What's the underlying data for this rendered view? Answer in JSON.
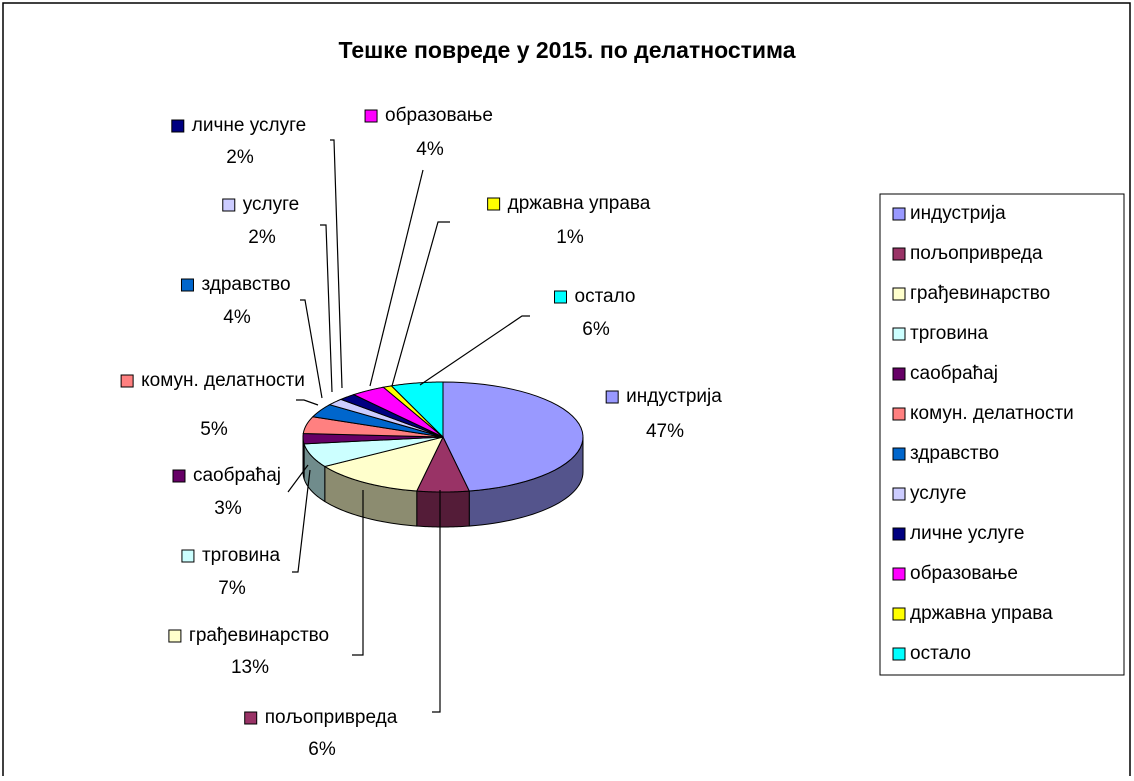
{
  "chart_data": {
    "type": "pie3d",
    "title": "Тешке повреде у 2015. по делатностима",
    "categories": [
      "индустрија",
      "пољопривреда",
      "грађевинарство",
      "трговина",
      "саобраћај",
      "комун. делатности",
      "здравство",
      "услуге",
      "личне услуге",
      "образовање",
      "државна управа",
      "остало"
    ],
    "values": [
      47,
      6,
      13,
      7,
      3,
      5,
      4,
      2,
      2,
      4,
      1,
      6
    ],
    "value_labels": [
      "47%",
      "6%",
      "13%",
      "7%",
      "3%",
      "5%",
      "4%",
      "2%",
      "2%",
      "4%",
      "1%",
      "6%"
    ],
    "colors": [
      "#9999ff",
      "#993366",
      "#ffffcc",
      "#ccffff",
      "#660066",
      "#ff8080",
      "#0066cc",
      "#ccccff",
      "#000080",
      "#ff00ff",
      "#ffff00",
      "#00ffff"
    ],
    "legend": "right"
  }
}
